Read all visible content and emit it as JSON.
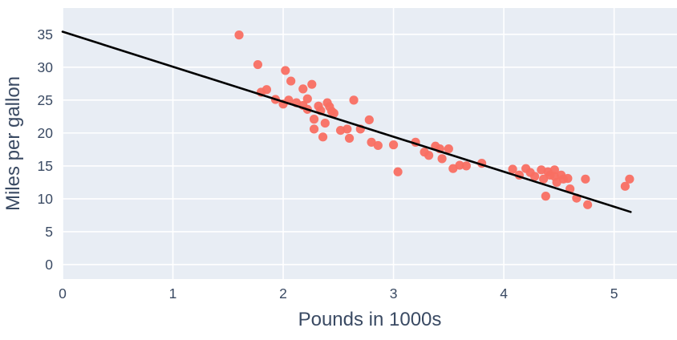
{
  "chart_data": {
    "type": "scatter",
    "title": "",
    "xlabel": "Pounds in 1000s",
    "ylabel": "Miles per gallon",
    "x_ticks": [
      0,
      1,
      2,
      3,
      4,
      5
    ],
    "y_ticks": [
      0,
      5,
      10,
      15,
      20,
      25,
      30,
      35
    ],
    "xlim": [
      0,
      5.57
    ],
    "ylim": [
      -2.2,
      39.0
    ],
    "grid": true,
    "legend": false,
    "points": [
      [
        1.6,
        34.9
      ],
      [
        1.77,
        30.4
      ],
      [
        1.8,
        26.2
      ],
      [
        1.85,
        26.6
      ],
      [
        1.93,
        25.1
      ],
      [
        2.0,
        24.4
      ],
      [
        2.02,
        29.5
      ],
      [
        2.07,
        27.9
      ],
      [
        2.05,
        25.0
      ],
      [
        2.12,
        24.6
      ],
      [
        2.18,
        26.7
      ],
      [
        2.18,
        24.2
      ],
      [
        2.22,
        25.2
      ],
      [
        2.22,
        23.6
      ],
      [
        2.26,
        27.4
      ],
      [
        2.28,
        22.1
      ],
      [
        2.28,
        20.6
      ],
      [
        2.32,
        24.1
      ],
      [
        2.34,
        23.4
      ],
      [
        2.36,
        19.4
      ],
      [
        2.4,
        24.6
      ],
      [
        2.42,
        24.0
      ],
      [
        2.44,
        23.3
      ],
      [
        2.46,
        23.0
      ],
      [
        2.38,
        21.5
      ],
      [
        2.52,
        20.4
      ],
      [
        2.58,
        20.6
      ],
      [
        2.6,
        19.2
      ],
      [
        2.64,
        25.0
      ],
      [
        2.7,
        20.6
      ],
      [
        2.78,
        22.0
      ],
      [
        2.8,
        18.6
      ],
      [
        2.86,
        18.1
      ],
      [
        3.0,
        18.2
      ],
      [
        3.04,
        14.1
      ],
      [
        3.2,
        18.6
      ],
      [
        3.28,
        17.1
      ],
      [
        3.32,
        16.6
      ],
      [
        3.38,
        18.0
      ],
      [
        3.42,
        17.6
      ],
      [
        3.44,
        16.1
      ],
      [
        3.5,
        17.6
      ],
      [
        3.54,
        14.6
      ],
      [
        3.6,
        15.1
      ],
      [
        3.66,
        15.0
      ],
      [
        3.8,
        15.4
      ],
      [
        4.08,
        14.5
      ],
      [
        4.14,
        13.6
      ],
      [
        4.2,
        14.6
      ],
      [
        4.24,
        14.0
      ],
      [
        4.28,
        13.4
      ],
      [
        4.34,
        14.4
      ],
      [
        4.36,
        13.0
      ],
      [
        4.4,
        14.1
      ],
      [
        4.42,
        13.6
      ],
      [
        4.38,
        10.4
      ],
      [
        4.46,
        14.4
      ],
      [
        4.46,
        13.4
      ],
      [
        4.48,
        12.5
      ],
      [
        4.52,
        13.6
      ],
      [
        4.54,
        13.0
      ],
      [
        4.58,
        13.1
      ],
      [
        4.6,
        11.5
      ],
      [
        4.66,
        10.1
      ],
      [
        4.74,
        13.0
      ],
      [
        4.76,
        9.1
      ],
      [
        5.1,
        11.9
      ],
      [
        5.14,
        13.0
      ]
    ],
    "regression_line": {
      "x1": 0,
      "y1": 35.4,
      "x2": 5.15,
      "y2": 8.0
    },
    "colors": {
      "plot_background": "#e8edf4",
      "grid": "#ffffff",
      "point": "#f96f62",
      "line": "#000000",
      "text": "#3a4a63"
    }
  }
}
